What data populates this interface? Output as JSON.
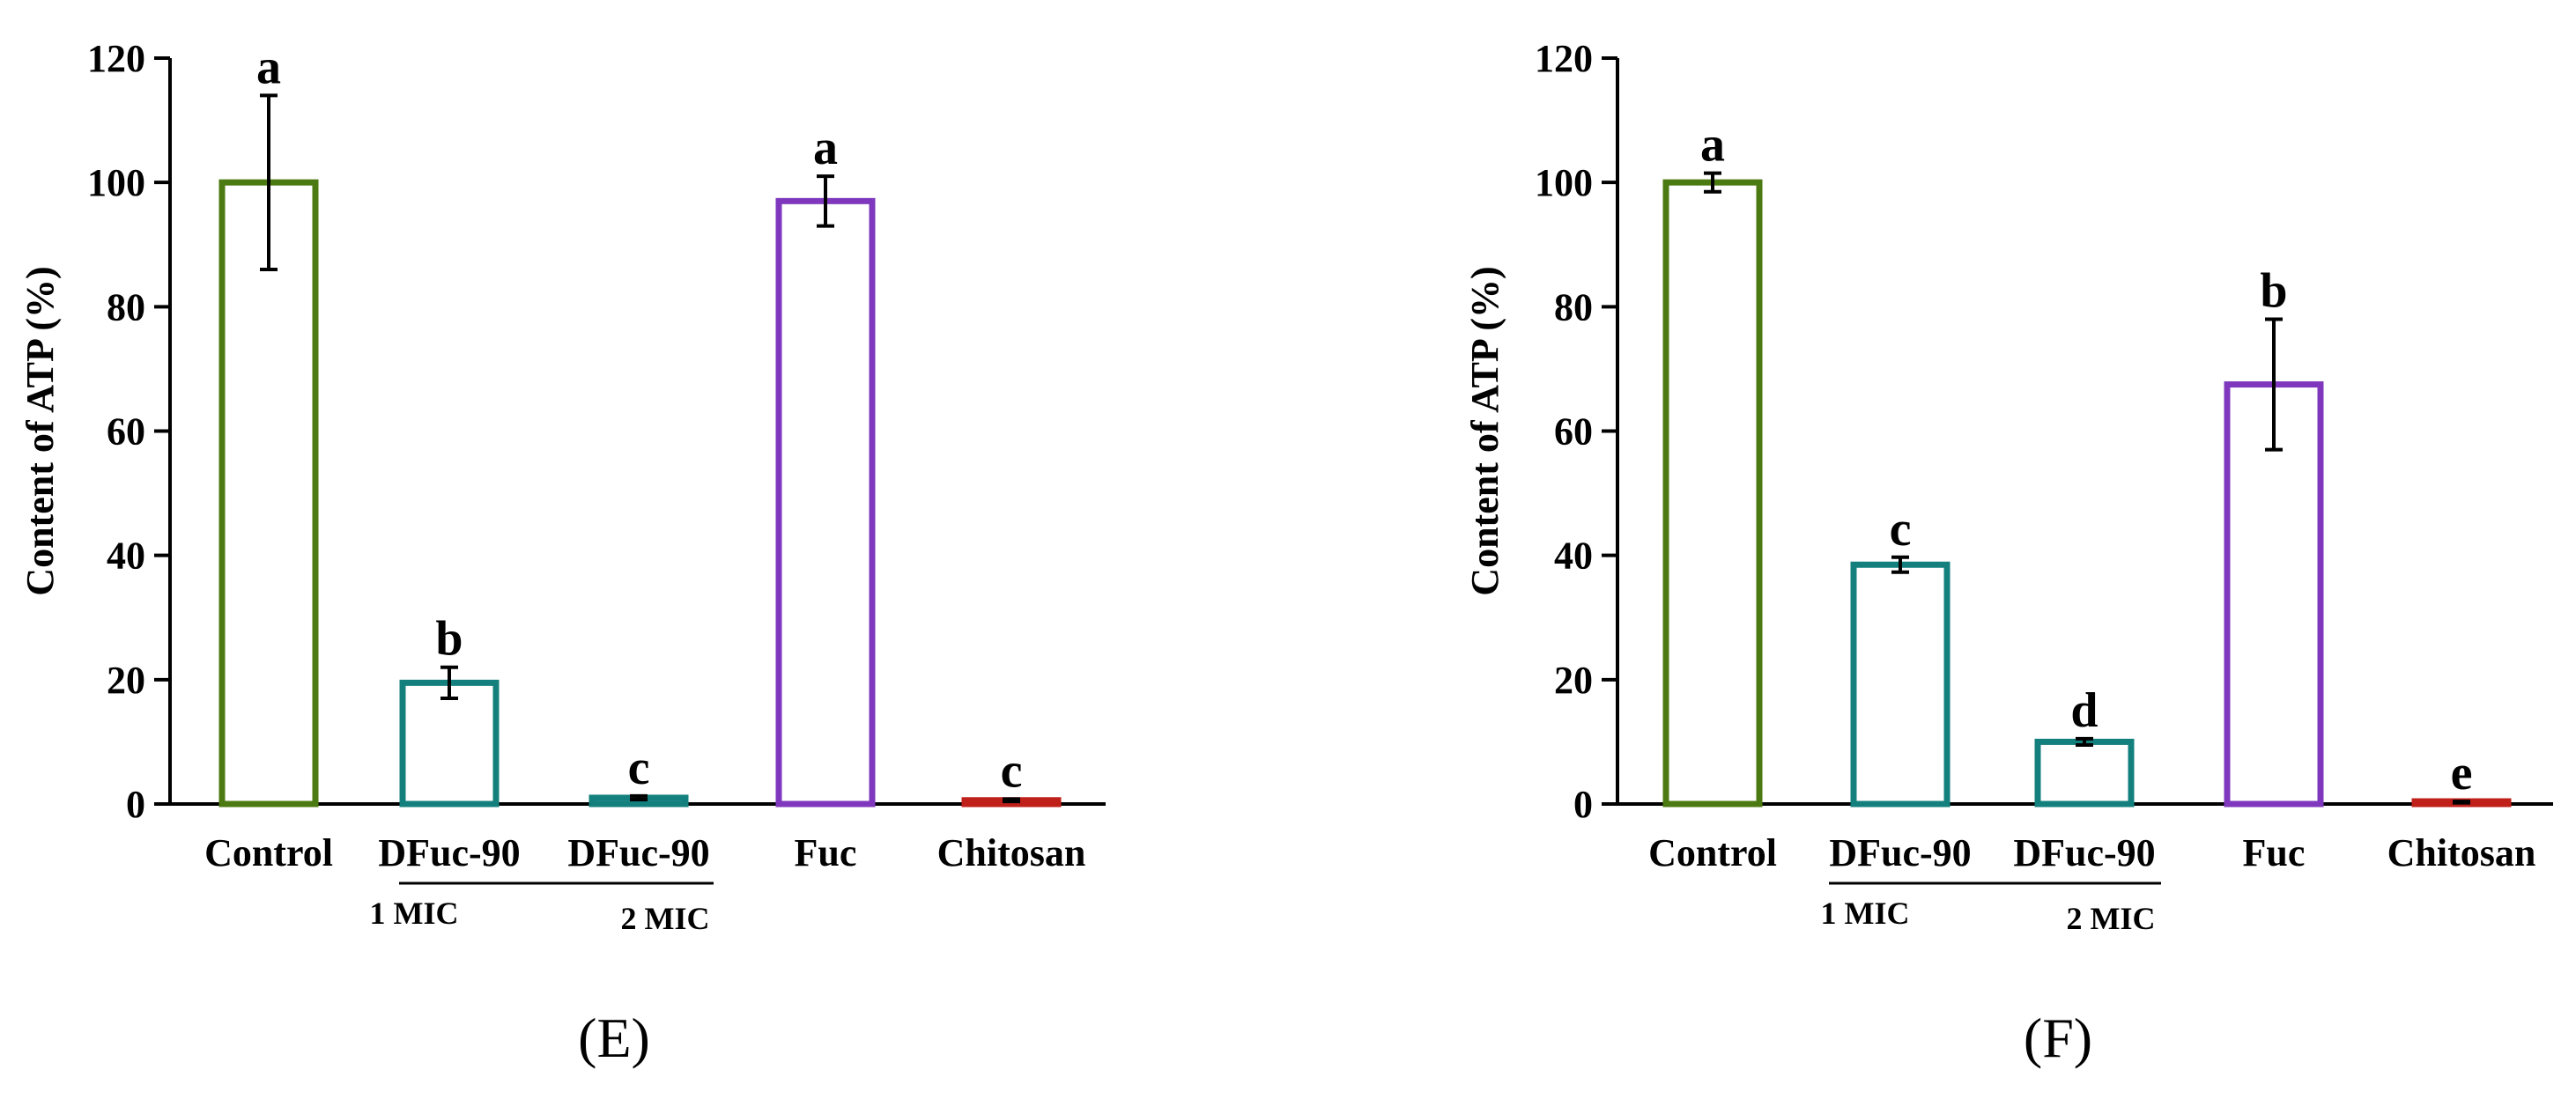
{
  "chart_data": [
    {
      "type": "bar",
      "panel_label": "(E)",
      "ylabel": "Content of ATP (%)",
      "xlabel": "",
      "ylim": [
        0,
        120
      ],
      "yticks": [
        "0",
        "20",
        "40",
        "60",
        "80",
        "100",
        "120"
      ],
      "categories": [
        "Control",
        "DFuc-90",
        "DFuc-90",
        "Fuc",
        "Chitosan"
      ],
      "sub_labels": [
        "",
        "1 MIC",
        "2 MIC",
        "",
        ""
      ],
      "values": [
        100,
        19.5,
        1.0,
        97,
        0.6
      ],
      "errors": [
        14,
        2.5,
        0.3,
        4,
        0.2
      ],
      "letters": [
        "a",
        "b",
        "c",
        "a",
        "c"
      ],
      "colors": [
        "#4c7a12",
        "#14807e",
        "#14807e",
        "#7f38bd",
        "#c0201a"
      ]
    },
    {
      "type": "bar",
      "panel_label": "(F)",
      "ylabel": "Content of ATP (%)",
      "xlabel": "",
      "ylim": [
        0,
        120
      ],
      "yticks": [
        "0",
        "20",
        "40",
        "60",
        "80",
        "100",
        "120"
      ],
      "categories": [
        "Control",
        "DFuc-90",
        "DFuc-90",
        "Fuc",
        "Chitosan"
      ],
      "sub_labels": [
        "",
        "1 MIC",
        "2 MIC",
        "",
        ""
      ],
      "values": [
        100,
        38.5,
        10,
        67.5,
        0.3
      ],
      "errors": [
        1.5,
        1.2,
        0.5,
        10.5,
        0.1
      ],
      "letters": [
        "a",
        "c",
        "d",
        "b",
        "e"
      ],
      "colors": [
        "#4c7a12",
        "#14807e",
        "#14807e",
        "#7f38bd",
        "#c0201a"
      ]
    }
  ]
}
